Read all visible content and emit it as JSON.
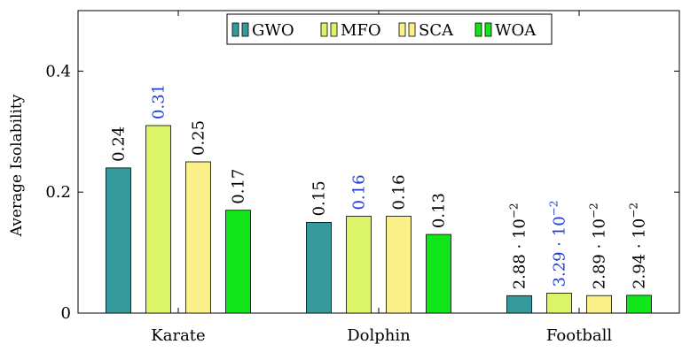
{
  "chart_data": {
    "type": "bar",
    "ylabel": "Average Isolability",
    "ylim": [
      0,
      0.5
    ],
    "yticks": [
      {
        "value": 0,
        "label": "0"
      },
      {
        "value": 0.2,
        "label": "0.2"
      },
      {
        "value": 0.4,
        "label": "0.4"
      }
    ],
    "categories": [
      "Karate",
      "Dolphin",
      "Football"
    ],
    "legend": {
      "position": "top-center"
    },
    "highlight_color": "#1f3fd0",
    "series": [
      {
        "name": "GWO",
        "color": "#36999c",
        "values": [
          0.24,
          0.15,
          0.0288
        ],
        "labels": [
          {
            "text": "0.24"
          },
          {
            "text": "0.15"
          },
          {
            "text": "2.88 · 10",
            "sup": "−2"
          }
        ]
      },
      {
        "name": "MFO",
        "color": "#dcf46a",
        "values": [
          0.31,
          0.16,
          0.0329
        ],
        "labels": [
          {
            "text": "0.31",
            "highlight": true
          },
          {
            "text": "0.16",
            "highlight": true
          },
          {
            "text": "3.29 · 10",
            "sup": "−2",
            "highlight": true
          }
        ]
      },
      {
        "name": "SCA",
        "color": "#fbf08a",
        "values": [
          0.25,
          0.16,
          0.0289
        ],
        "labels": [
          {
            "text": "0.25"
          },
          {
            "text": "0.16"
          },
          {
            "text": "2.89 · 10",
            "sup": "−2"
          }
        ]
      },
      {
        "name": "WOA",
        "color": "#12e61a",
        "values": [
          0.17,
          0.13,
          0.0294
        ],
        "labels": [
          {
            "text": "0.17"
          },
          {
            "text": "0.13"
          },
          {
            "text": "2.94 · 10",
            "sup": "−2"
          }
        ]
      }
    ]
  }
}
